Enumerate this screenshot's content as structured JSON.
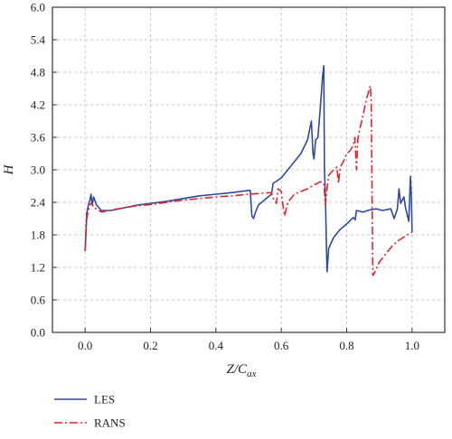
{
  "chart_data": {
    "type": "line",
    "title": "",
    "xlabel": "Z/C",
    "xlabel_sub": "ax",
    "ylabel": "H",
    "xlim": [
      -0.1,
      1.1
    ],
    "ylim": [
      0.0,
      6.0
    ],
    "xticks": [
      0.0,
      0.2,
      0.4,
      0.6,
      0.8,
      1.0
    ],
    "xtick_labels": [
      "0.0",
      "0.2",
      "0.4",
      "0.6",
      "0.8",
      "1.0"
    ],
    "yticks": [
      0.0,
      0.6,
      1.2,
      1.8,
      2.4,
      3.0,
      3.6,
      4.2,
      4.8,
      5.4,
      6.0
    ],
    "ytick_labels": [
      "0.0",
      "0.6",
      "1.2",
      "1.8",
      "2.4",
      "3.0",
      "3.6",
      "4.2",
      "4.8",
      "5.4",
      "6.0"
    ],
    "grid": true,
    "legend_position": "bottom-left, below plot",
    "series": [
      {
        "name": "LES",
        "color": "#2e4aa0",
        "dash": "solid",
        "points": [
          [
            0.0,
            1.5
          ],
          [
            0.005,
            2.2
          ],
          [
            0.01,
            2.35
          ],
          [
            0.015,
            2.45
          ],
          [
            0.018,
            2.55
          ],
          [
            0.022,
            2.35
          ],
          [
            0.026,
            2.5
          ],
          [
            0.035,
            2.35
          ],
          [
            0.05,
            2.25
          ],
          [
            0.08,
            2.25
          ],
          [
            0.12,
            2.3
          ],
          [
            0.16,
            2.35
          ],
          [
            0.2,
            2.38
          ],
          [
            0.25,
            2.42
          ],
          [
            0.3,
            2.47
          ],
          [
            0.35,
            2.52
          ],
          [
            0.4,
            2.55
          ],
          [
            0.45,
            2.58
          ],
          [
            0.5,
            2.62
          ],
          [
            0.505,
            2.62
          ],
          [
            0.51,
            2.15
          ],
          [
            0.515,
            2.1
          ],
          [
            0.52,
            2.2
          ],
          [
            0.53,
            2.35
          ],
          [
            0.55,
            2.45
          ],
          [
            0.57,
            2.55
          ],
          [
            0.575,
            2.75
          ],
          [
            0.6,
            2.85
          ],
          [
            0.62,
            3.0
          ],
          [
            0.64,
            3.15
          ],
          [
            0.66,
            3.3
          ],
          [
            0.68,
            3.55
          ],
          [
            0.692,
            3.9
          ],
          [
            0.697,
            3.3
          ],
          [
            0.7,
            3.2
          ],
          [
            0.705,
            3.55
          ],
          [
            0.712,
            3.6
          ],
          [
            0.72,
            4.2
          ],
          [
            0.726,
            4.7
          ],
          [
            0.73,
            4.92
          ],
          [
            0.732,
            3.0
          ],
          [
            0.735,
            2.5
          ],
          [
            0.738,
            1.6
          ],
          [
            0.74,
            1.12
          ],
          [
            0.745,
            1.55
          ],
          [
            0.76,
            1.75
          ],
          [
            0.78,
            1.9
          ],
          [
            0.8,
            2.0
          ],
          [
            0.82,
            2.12
          ],
          [
            0.826,
            2.08
          ],
          [
            0.83,
            2.25
          ],
          [
            0.85,
            2.22
          ],
          [
            0.87,
            2.26
          ],
          [
            0.89,
            2.28
          ],
          [
            0.91,
            2.25
          ],
          [
            0.935,
            2.28
          ],
          [
            0.945,
            2.1
          ],
          [
            0.955,
            2.28
          ],
          [
            0.96,
            2.65
          ],
          [
            0.965,
            2.38
          ],
          [
            0.975,
            2.5
          ],
          [
            0.98,
            2.3
          ],
          [
            0.99,
            2.05
          ],
          [
            0.995,
            2.88
          ],
          [
            0.998,
            2.5
          ],
          [
            1.0,
            1.85
          ]
        ]
      },
      {
        "name": "RANS",
        "color": "#e3262d",
        "dash": "dashdot",
        "points": [
          [
            0.0,
            1.5
          ],
          [
            0.005,
            2.1
          ],
          [
            0.01,
            2.25
          ],
          [
            0.015,
            2.35
          ],
          [
            0.02,
            2.4
          ],
          [
            0.025,
            2.3
          ],
          [
            0.035,
            2.28
          ],
          [
            0.05,
            2.22
          ],
          [
            0.1,
            2.28
          ],
          [
            0.15,
            2.33
          ],
          [
            0.2,
            2.36
          ],
          [
            0.25,
            2.4
          ],
          [
            0.3,
            2.44
          ],
          [
            0.35,
            2.47
          ],
          [
            0.4,
            2.5
          ],
          [
            0.45,
            2.52
          ],
          [
            0.5,
            2.55
          ],
          [
            0.55,
            2.57
          ],
          [
            0.57,
            2.58
          ],
          [
            0.575,
            2.48
          ],
          [
            0.585,
            2.38
          ],
          [
            0.59,
            2.65
          ],
          [
            0.6,
            2.6
          ],
          [
            0.605,
            2.35
          ],
          [
            0.61,
            2.15
          ],
          [
            0.62,
            2.4
          ],
          [
            0.64,
            2.55
          ],
          [
            0.66,
            2.6
          ],
          [
            0.68,
            2.65
          ],
          [
            0.7,
            2.72
          ],
          [
            0.72,
            2.78
          ],
          [
            0.73,
            2.75
          ],
          [
            0.735,
            2.35
          ],
          [
            0.74,
            2.65
          ],
          [
            0.745,
            2.9
          ],
          [
            0.76,
            3.0
          ],
          [
            0.77,
            3.05
          ],
          [
            0.775,
            2.75
          ],
          [
            0.78,
            3.05
          ],
          [
            0.79,
            3.15
          ],
          [
            0.8,
            3.3
          ],
          [
            0.81,
            3.35
          ],
          [
            0.82,
            3.45
          ],
          [
            0.825,
            3.6
          ],
          [
            0.83,
            3.0
          ],
          [
            0.834,
            3.55
          ],
          [
            0.84,
            3.75
          ],
          [
            0.85,
            4.0
          ],
          [
            0.86,
            4.3
          ],
          [
            0.87,
            4.5
          ],
          [
            0.872,
            4.55
          ],
          [
            0.875,
            4.3
          ],
          [
            0.878,
            2.3
          ],
          [
            0.88,
            1.05
          ],
          [
            0.885,
            1.1
          ],
          [
            0.9,
            1.3
          ],
          [
            0.92,
            1.45
          ],
          [
            0.94,
            1.6
          ],
          [
            0.96,
            1.7
          ],
          [
            0.98,
            1.78
          ],
          [
            1.0,
            1.85
          ]
        ]
      }
    ]
  }
}
